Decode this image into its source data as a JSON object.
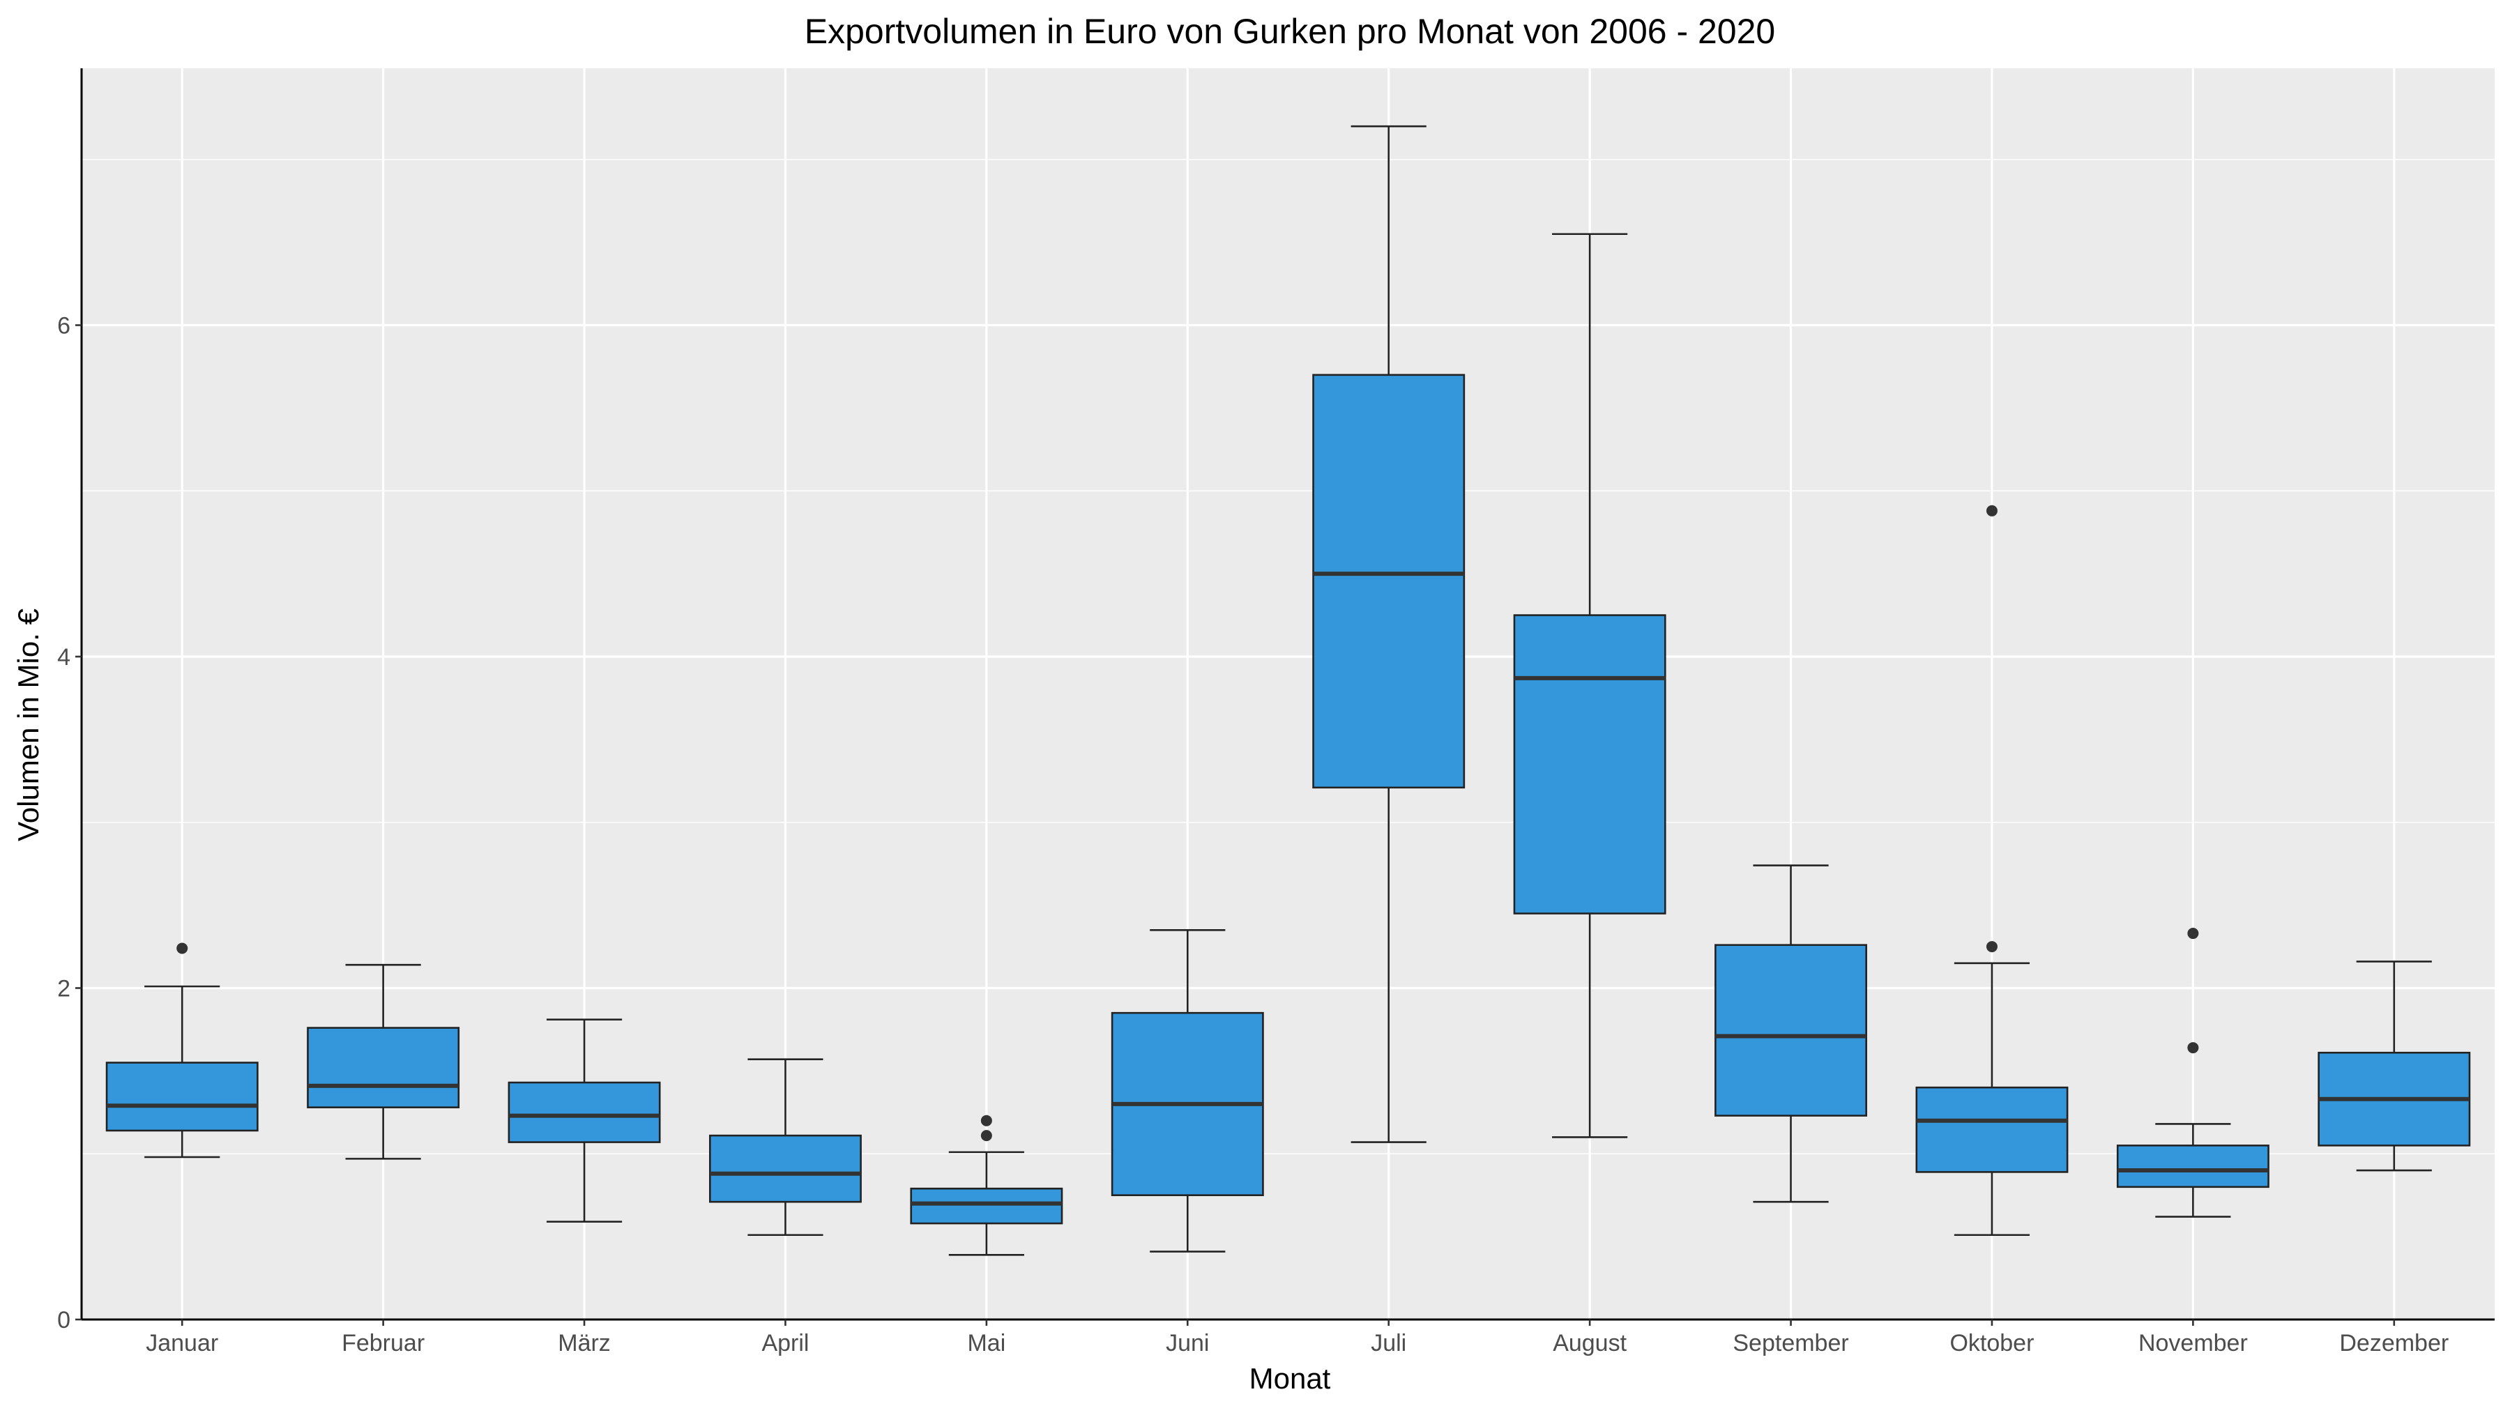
{
  "chart_data": {
    "type": "boxplot",
    "title": "Exportvolumen in Euro von Gurken pro Monat von 2006 - 2020",
    "xlabel": "Monat",
    "ylabel": "Volumen in Mio. €",
    "ylim": [
      0,
      7.55
    ],
    "y_ticks": [
      0,
      2,
      4,
      6
    ],
    "grid": true,
    "legend": "none",
    "categories": [
      "Januar",
      "Februar",
      "März",
      "April",
      "Mai",
      "Juni",
      "Juli",
      "August",
      "September",
      "Oktober",
      "November",
      "Dezember"
    ],
    "boxes": [
      {
        "min": 0.98,
        "q1": 1.14,
        "median": 1.29,
        "q3": 1.55,
        "max": 2.01,
        "outliers": [
          2.24
        ]
      },
      {
        "min": 0.97,
        "q1": 1.28,
        "median": 1.41,
        "q3": 1.76,
        "max": 2.14,
        "outliers": []
      },
      {
        "min": 0.59,
        "q1": 1.07,
        "median": 1.23,
        "q3": 1.43,
        "max": 1.81,
        "outliers": []
      },
      {
        "min": 0.51,
        "q1": 0.71,
        "median": 0.88,
        "q3": 1.11,
        "max": 1.57,
        "outliers": []
      },
      {
        "min": 0.39,
        "q1": 0.58,
        "median": 0.7,
        "q3": 0.79,
        "max": 1.01,
        "outliers": [
          1.11,
          1.2
        ]
      },
      {
        "min": 0.41,
        "q1": 0.75,
        "median": 1.3,
        "q3": 1.85,
        "max": 2.35,
        "outliers": []
      },
      {
        "min": 1.07,
        "q1": 3.21,
        "median": 4.5,
        "q3": 5.7,
        "max": 7.2,
        "outliers": []
      },
      {
        "min": 1.1,
        "q1": 2.45,
        "median": 3.87,
        "q3": 4.25,
        "max": 6.55,
        "outliers": []
      },
      {
        "min": 0.71,
        "q1": 1.23,
        "median": 1.71,
        "q3": 2.26,
        "max": 2.74,
        "outliers": []
      },
      {
        "min": 0.51,
        "q1": 0.89,
        "median": 1.2,
        "q3": 1.4,
        "max": 2.15,
        "outliers": [
          2.25,
          4.88
        ]
      },
      {
        "min": 0.62,
        "q1": 0.8,
        "median": 0.9,
        "q3": 1.05,
        "max": 1.18,
        "outliers": [
          1.64,
          2.33
        ]
      },
      {
        "min": 0.9,
        "q1": 1.05,
        "median": 1.33,
        "q3": 1.61,
        "max": 2.16,
        "outliers": []
      }
    ],
    "colors": {
      "box_fill": "#3597db",
      "box_stroke": "#222222",
      "median": "#333333",
      "panel_background": "#ebebeb",
      "grid": "#ffffff",
      "outlier": "#333333"
    }
  }
}
